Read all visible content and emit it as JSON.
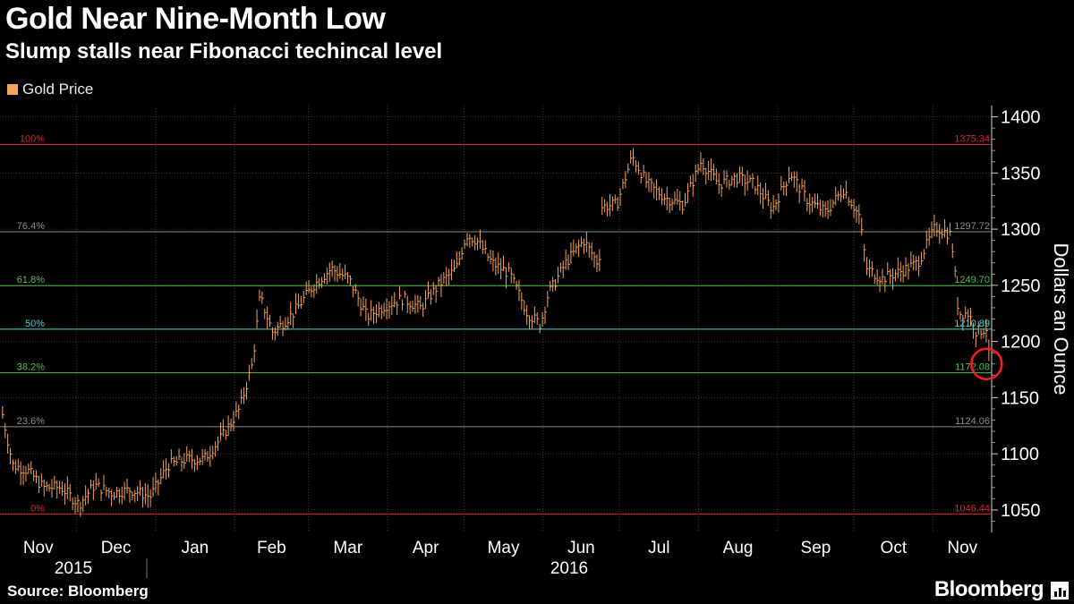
{
  "header": {
    "title": "Gold Near Nine-Month Low",
    "subtitle": "Slump stalls near Fibonacci techincal level",
    "legend_label": "Gold Price"
  },
  "footer": {
    "source": "Source: Bloomberg",
    "brand": "Bloomberg"
  },
  "colors": {
    "background": "#000000",
    "series": "#f5a45a",
    "grid": "#3a3a3a",
    "red": "#e0202a",
    "green": "#55c04c",
    "cyan": "#3fd6dc",
    "gray": "#8c8c8c",
    "circle": "#ff1a22"
  },
  "chart_data": {
    "type": "line",
    "title": "Gold Near Nine-Month Low",
    "subtitle": "Slump stalls near Fibonacci techincal level",
    "ylabel": "Dollars an Ounce",
    "ylim": [
      1030,
      1410
    ],
    "y_ticks": [
      1050,
      1100,
      1150,
      1200,
      1250,
      1300,
      1350,
      1400
    ],
    "y_axis_side": "right",
    "x_range": [
      "2015-11-01",
      "2016-11-24"
    ],
    "month_labels": [
      "Nov",
      "Dec",
      "Jan",
      "Feb",
      "Mar",
      "Apr",
      "May",
      "Jun",
      "Jul",
      "Aug",
      "Sep",
      "Oct",
      "Nov"
    ],
    "year_labels": [
      "2015",
      "2016"
    ],
    "grid": true,
    "legend_position": "top-left",
    "series": [
      {
        "name": "Gold Price",
        "points": [
          [
            "2015-11-02",
            1135
          ],
          [
            "2015-11-06",
            1090
          ],
          [
            "2015-11-12",
            1085
          ],
          [
            "2015-11-18",
            1070
          ],
          [
            "2015-11-25",
            1070
          ],
          [
            "2015-12-02",
            1055
          ],
          [
            "2015-12-08",
            1072
          ],
          [
            "2015-12-15",
            1065
          ],
          [
            "2015-12-22",
            1068
          ],
          [
            "2015-12-30",
            1062
          ],
          [
            "2016-01-06",
            1090
          ],
          [
            "2016-01-13",
            1095
          ],
          [
            "2016-01-20",
            1095
          ],
          [
            "2016-01-27",
            1115
          ],
          [
            "2016-02-03",
            1140
          ],
          [
            "2016-02-08",
            1180
          ],
          [
            "2016-02-11",
            1240
          ],
          [
            "2016-02-16",
            1208
          ],
          [
            "2016-02-24",
            1225
          ],
          [
            "2016-03-03",
            1250
          ],
          [
            "2016-03-10",
            1265
          ],
          [
            "2016-03-17",
            1255
          ],
          [
            "2016-03-24",
            1222
          ],
          [
            "2016-03-31",
            1232
          ],
          [
            "2016-04-07",
            1238
          ],
          [
            "2016-04-14",
            1230
          ],
          [
            "2016-04-21",
            1250
          ],
          [
            "2016-04-28",
            1265
          ],
          [
            "2016-05-02",
            1295
          ],
          [
            "2016-05-06",
            1290
          ],
          [
            "2016-05-12",
            1270
          ],
          [
            "2016-05-19",
            1260
          ],
          [
            "2016-05-26",
            1225
          ],
          [
            "2016-05-31",
            1215
          ],
          [
            "2016-06-03",
            1242
          ],
          [
            "2016-06-10",
            1270
          ],
          [
            "2016-06-17",
            1290
          ],
          [
            "2016-06-23",
            1268
          ],
          [
            "2016-06-24",
            1320
          ],
          [
            "2016-06-30",
            1322
          ],
          [
            "2016-07-06",
            1365
          ],
          [
            "2016-07-12",
            1340
          ],
          [
            "2016-07-19",
            1328
          ],
          [
            "2016-07-26",
            1322
          ],
          [
            "2016-08-02",
            1360
          ],
          [
            "2016-08-09",
            1340
          ],
          [
            "2016-08-16",
            1346
          ],
          [
            "2016-08-23",
            1340
          ],
          [
            "2016-08-30",
            1318
          ],
          [
            "2016-09-06",
            1350
          ],
          [
            "2016-09-13",
            1325
          ],
          [
            "2016-09-20",
            1315
          ],
          [
            "2016-09-27",
            1336
          ],
          [
            "2016-10-03",
            1312
          ],
          [
            "2016-10-06",
            1265
          ],
          [
            "2016-10-12",
            1256
          ],
          [
            "2016-10-19",
            1262
          ],
          [
            "2016-10-26",
            1270
          ],
          [
            "2016-11-02",
            1302
          ],
          [
            "2016-11-08",
            1295
          ],
          [
            "2016-11-09",
            1275
          ],
          [
            "2016-11-11",
            1225
          ],
          [
            "2016-11-15",
            1225
          ],
          [
            "2016-11-18",
            1208
          ],
          [
            "2016-11-22",
            1212
          ],
          [
            "2016-11-23",
            1185
          ]
        ]
      }
    ],
    "reference_lines": [
      {
        "label": "100%",
        "value": 1375.34,
        "value_label": "1375.34",
        "color": "red"
      },
      {
        "label": "76.4%",
        "value": 1297.72,
        "value_label": "1297.72",
        "color": "gray"
      },
      {
        "label": "61.8%",
        "value": 1249.7,
        "value_label": "1249.70",
        "color": "green"
      },
      {
        "label": "50%",
        "value": 1210.89,
        "value_label": "1210.89",
        "color": "cyan"
      },
      {
        "label": "38.2%",
        "value": 1172.08,
        "value_label": "1172.08",
        "color": "green"
      },
      {
        "label": "23.6%",
        "value": 1124.06,
        "value_label": "1124.06",
        "color": "gray"
      },
      {
        "label": "0%",
        "value": 1046.44,
        "value_label": "1046.44",
        "color": "red"
      }
    ],
    "annotations": [
      {
        "type": "circle",
        "date": "2016-11-22",
        "value": 1180,
        "color": "circle"
      }
    ]
  }
}
